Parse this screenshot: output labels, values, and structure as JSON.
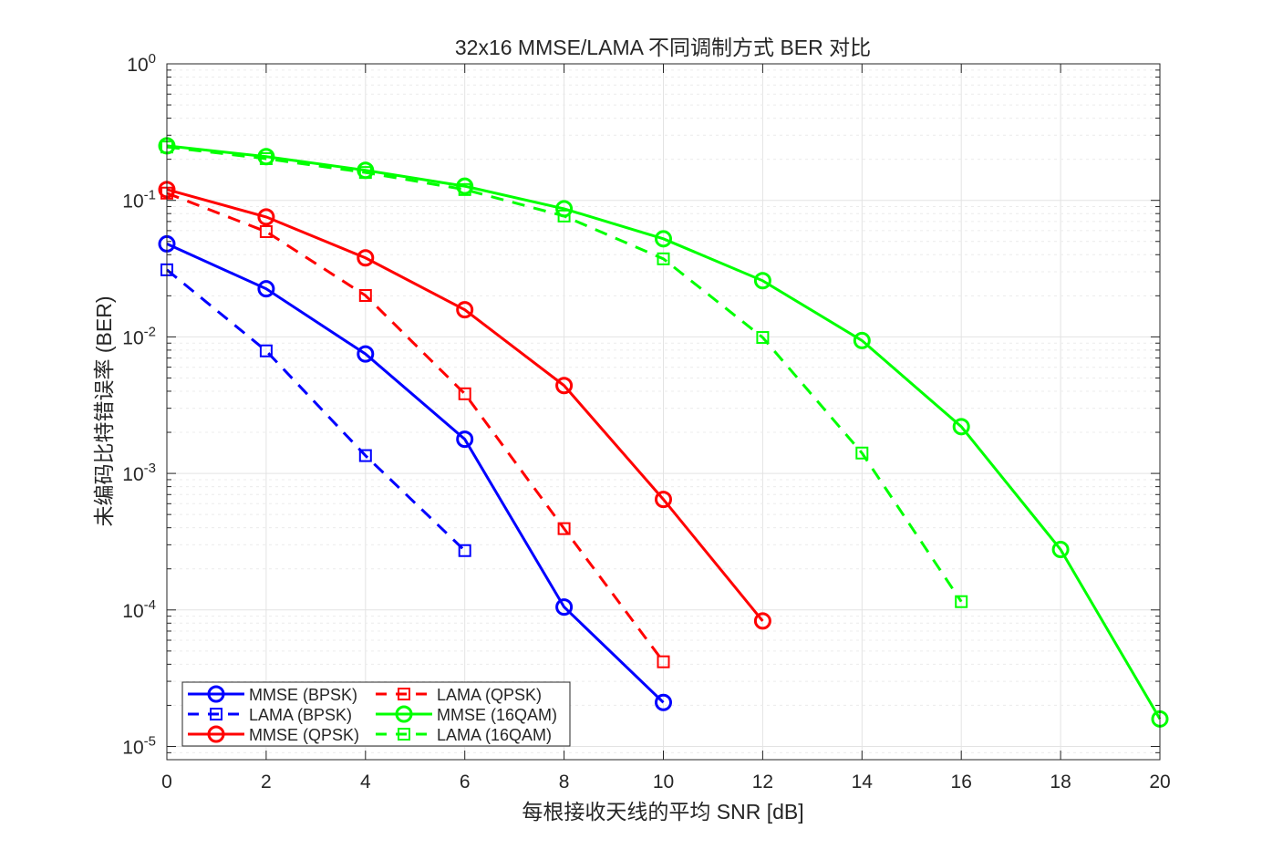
{
  "chart_data": {
    "type": "line",
    "title": "32x16 MMSE/LAMA 不同调制方式 BER 对比",
    "xlabel": "每根接收天线的平均 SNR [dB]",
    "ylabel": "未编码比特错误率 (BER)",
    "xlim": [
      0,
      20
    ],
    "ylim": [
      8e-06,
      1
    ],
    "yscale": "log",
    "grid": true,
    "minor_grid": true,
    "legend_position": "bottom-left",
    "legend_columns": 2,
    "xticks": [
      "0",
      "2",
      "4",
      "6",
      "8",
      "10",
      "12",
      "14",
      "16",
      "18",
      "20"
    ],
    "yticks": [
      {
        "base": "10",
        "exp": "0"
      },
      {
        "base": "10",
        "exp": "-1"
      },
      {
        "base": "10",
        "exp": "-2"
      },
      {
        "base": "10",
        "exp": "-3"
      },
      {
        "base": "10",
        "exp": "-4"
      },
      {
        "base": "10",
        "exp": "-5"
      }
    ],
    "series": [
      {
        "name": "MMSE (BPSK)",
        "color": "#0000ff",
        "dash": "solid",
        "marker": "circle",
        "x": [
          0,
          2,
          4,
          6,
          8,
          10
        ],
        "y": [
          0.048,
          0.0225,
          0.0075,
          0.00178,
          0.000105,
          2.1e-05
        ]
      },
      {
        "name": "LAMA (BPSK)",
        "color": "#0000ff",
        "dash": "dashed",
        "marker": "square",
        "x": [
          0,
          2,
          4,
          6
        ],
        "y": [
          0.031,
          0.0079,
          0.00135,
          0.000272
        ]
      },
      {
        "name": "MMSE (QPSK)",
        "color": "#ff0000",
        "dash": "solid",
        "marker": "circle",
        "x": [
          0,
          2,
          4,
          6,
          8,
          10,
          12
        ],
        "y": [
          0.12,
          0.0756,
          0.0379,
          0.0158,
          0.0044,
          0.000645,
          8.3e-05
        ]
      },
      {
        "name": "LAMA (QPSK)",
        "color": "#ff0000",
        "dash": "dashed",
        "marker": "square",
        "x": [
          0,
          2,
          4,
          6,
          8,
          10
        ],
        "y": [
          0.113,
          0.059,
          0.0201,
          0.00383,
          0.000394,
          4.17e-05
        ]
      },
      {
        "name": "MMSE (16QAM)",
        "color": "#00ff00",
        "dash": "solid",
        "marker": "circle",
        "x": [
          0,
          2,
          4,
          6,
          8,
          10,
          12,
          14,
          16,
          18,
          20
        ],
        "y": [
          0.251,
          0.209,
          0.166,
          0.127,
          0.0868,
          0.0523,
          0.0258,
          0.0094,
          0.0022,
          0.000277,
          1.59e-05
        ]
      },
      {
        "name": "LAMA (16QAM)",
        "color": "#00ff00",
        "dash": "dashed",
        "marker": "square",
        "x": [
          0,
          2,
          4,
          6,
          8,
          10,
          12,
          14,
          16
        ],
        "y": [
          0.246,
          0.202,
          0.16,
          0.12,
          0.0768,
          0.0373,
          0.0099,
          0.00141,
          0.000115
        ]
      }
    ]
  }
}
